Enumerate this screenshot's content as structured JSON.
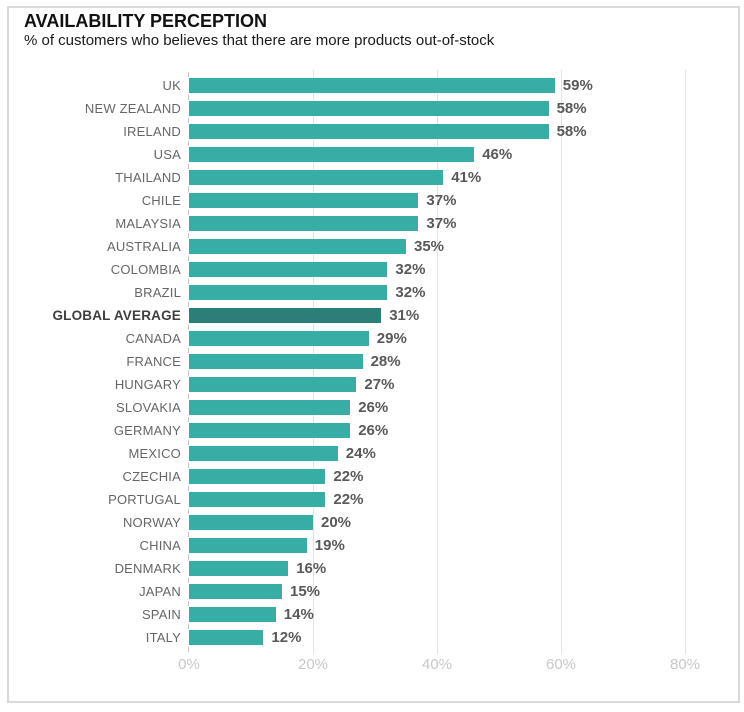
{
  "header": {
    "title": "AVAILABILITY PERCEPTION",
    "subtitle": "% of customers who believes that there are more products out-of-stock"
  },
  "chart_data": {
    "type": "bar",
    "orientation": "horizontal",
    "title": "AVAILABILITY PERCEPTION",
    "subtitle": "% of customers who believes that there are more products out-of-stock",
    "categories": [
      "UK",
      "NEW ZEALAND",
      "IRELAND",
      "USA",
      "THAILAND",
      "CHILE",
      "MALAYSIA",
      "AUSTRALIA",
      "COLOMBIA",
      "BRAZIL",
      "GLOBAL AVERAGE",
      "CANADA",
      "FRANCE",
      "HUNGARY",
      "SLOVAKIA",
      "GERMANY",
      "MEXICO",
      "CZECHIA",
      "PORTUGAL",
      "NORWAY",
      "CHINA",
      "DENMARK",
      "JAPAN",
      "SPAIN",
      "ITALY"
    ],
    "values": [
      59,
      58,
      58,
      46,
      41,
      37,
      37,
      35,
      32,
      32,
      31,
      29,
      28,
      27,
      26,
      26,
      24,
      22,
      22,
      20,
      19,
      16,
      15,
      14,
      12
    ],
    "value_suffix": "%",
    "highlight_category": "GLOBAL AVERAGE",
    "x_axis": {
      "tick_labels": [
        "0%",
        "20%",
        "40%",
        "60%",
        "80%"
      ],
      "tick_values": [
        0,
        20,
        40,
        60,
        80
      ],
      "min": 0,
      "max": 80
    },
    "grid": "vertical-only",
    "legend": "none",
    "colors": {
      "bar": "#36ada5",
      "highlight_bar": "#2c7e79",
      "value_label": "#595959",
      "category_label": "#666666",
      "highlight_label": "#3f3f3f",
      "axis_label": "#c8c8c8",
      "gridline": "#e3e3e3",
      "border": "#d9d9d9"
    }
  }
}
